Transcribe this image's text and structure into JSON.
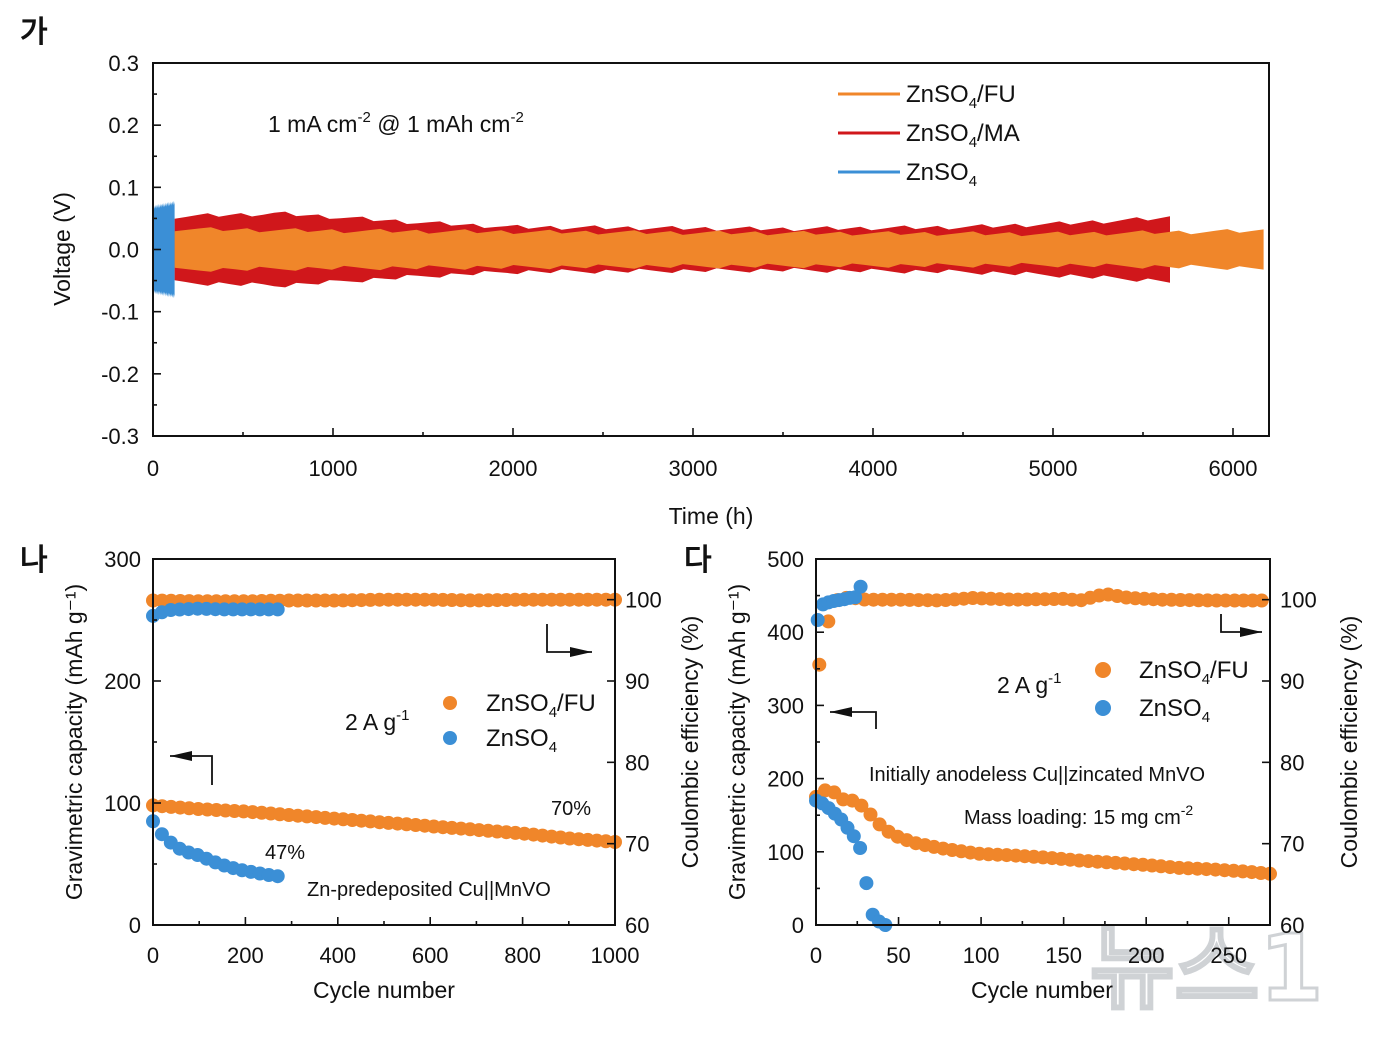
{
  "panels": {
    "a": "가",
    "b": "나",
    "c": "다"
  },
  "watermark": "뉴스1",
  "colors": {
    "orange": "#F0862A",
    "red": "#D0171B",
    "blue": "#3B8FD6"
  },
  "chart_data": [
    {
      "id": "a",
      "type": "line",
      "xlabel": "Time (h)",
      "ylabel": "Voltage (V)",
      "xlim": [
        0,
        6200
      ],
      "ylim": [
        -0.3,
        0.3
      ],
      "xticks": [
        "0",
        "1000",
        "2000",
        "3000",
        "4000",
        "5000",
        "6000"
      ],
      "yticks": [
        "0.3",
        "0.2",
        "0.1",
        "0.0",
        "-0.1",
        "-0.2",
        "-0.3"
      ],
      "annotation": {
        "base": "1 mA cm",
        "exp1": "-2",
        "mid": " @ 1 mAh cm",
        "exp2": "-2"
      },
      "legend_position": "top-right",
      "series": [
        {
          "name": "ZnSO4/FU",
          "name_base": "ZnSO",
          "name_sub": "4",
          "name_rest": "/FU",
          "color": "#F0862A",
          "x_end": 6170,
          "envelope": [
            [
              120,
              0.033
            ],
            [
              1000,
              0.03
            ],
            [
              3000,
              0.027
            ],
            [
              5000,
              0.025
            ],
            [
              6170,
              0.03
            ]
          ]
        },
        {
          "name": "ZnSO4/MA",
          "name_base": "ZnSO",
          "name_sub": "4",
          "name_rest": "/MA",
          "color": "#D0171B",
          "x_end": 5650,
          "envelope": [
            [
              120,
              0.053
            ],
            [
              700,
              0.058
            ],
            [
              1500,
              0.043
            ],
            [
              2000,
              0.036
            ],
            [
              3500,
              0.033
            ],
            [
              4500,
              0.036
            ],
            [
              5000,
              0.041
            ],
            [
              5650,
              0.051
            ]
          ]
        },
        {
          "name": "ZnSO4",
          "name_base": "ZnSO",
          "name_sub": "4",
          "name_rest": "",
          "color": "#3B8FD6",
          "x_end": 120,
          "envelope": [
            [
              0,
              0.068
            ],
            [
              120,
              0.075
            ]
          ]
        }
      ]
    },
    {
      "id": "b",
      "type": "scatter",
      "xlabel": "Cycle number",
      "ylabel": "Gravimetric capacity (mAh g⁻¹)",
      "y2label": "Coulombic efficiency (%)",
      "xlim": [
        0,
        1000
      ],
      "ylim": [
        0,
        300
      ],
      "y2lim": [
        60,
        105
      ],
      "xticks": [
        "0",
        "200",
        "400",
        "600",
        "800",
        "1000"
      ],
      "yticks": [
        "0",
        "100",
        "200",
        "300"
      ],
      "y2ticks": [
        "60",
        "70",
        "80",
        "90",
        "100"
      ],
      "rate": {
        "base": "2 A g",
        "exp": "-1"
      },
      "note": "Zn-predeposited Cu||MnVO",
      "retention_fu": "70%",
      "retention_zn": "47%",
      "series": [
        {
          "name": "ZnSO4/FU",
          "name_base": "ZnSO",
          "name_sub": "4",
          "name_rest": "/FU",
          "color": "#F0862A",
          "axis": "left",
          "x": [
            0,
            100,
            200,
            300,
            400,
            500,
            600,
            700,
            800,
            900,
            1000
          ],
          "y": [
            98,
            95,
            93,
            90,
            87,
            84,
            81,
            78,
            75,
            71,
            68
          ]
        },
        {
          "name": "ZnSO4",
          "name_base": "ZnSO",
          "name_sub": "4",
          "name_rest": "",
          "color": "#3B8FD6",
          "axis": "left",
          "x": [
            0,
            20,
            40,
            60,
            80,
            100,
            130,
            160,
            190,
            220,
            250,
            270
          ],
          "y": [
            85,
            74,
            67,
            62,
            59,
            57,
            52,
            48,
            45,
            43,
            41,
            40
          ]
        },
        {
          "name": "ZnSO4/FU CE",
          "color": "#F0862A",
          "axis": "right",
          "x": [
            0,
            100,
            200,
            300,
            400,
            500,
            600,
            700,
            800,
            900,
            1000
          ],
          "y": [
            99.9,
            99.8,
            99.8,
            99.9,
            99.9,
            100.0,
            100.0,
            99.9,
            100.0,
            100.0,
            100.0
          ]
        },
        {
          "name": "ZnSO4 CE",
          "color": "#3B8FD6",
          "axis": "right",
          "x": [
            0,
            30,
            60,
            100,
            150,
            200,
            270
          ],
          "y": [
            98.0,
            98.7,
            98.8,
            98.9,
            98.8,
            98.8,
            98.8
          ]
        }
      ]
    },
    {
      "id": "c",
      "type": "scatter",
      "xlabel": "Cycle number",
      "ylabel": "Gravimetric capacity (mAh g⁻¹)",
      "y2label": "Coulombic efficiency (%)",
      "xlim": [
        0,
        275
      ],
      "ylim": [
        0,
        500
      ],
      "y2lim": [
        60,
        105
      ],
      "xticks": [
        "0",
        "50",
        "100",
        "150",
        "200",
        "250"
      ],
      "yticks": [
        "0",
        "100",
        "200",
        "300",
        "400",
        "500"
      ],
      "y2ticks": [
        "60",
        "70",
        "80",
        "90",
        "100"
      ],
      "rate": {
        "base": "2 A g",
        "exp": "-1"
      },
      "note1": "Initially anodeless Cu||zincated MnVO",
      "note2": {
        "base": "Mass loading: 15 mg cm",
        "exp": "-2"
      },
      "series": [
        {
          "name": "ZnSO4/FU",
          "name_base": "ZnSO",
          "name_sub": "4",
          "name_rest": "/FU",
          "color": "#F0862A",
          "axis": "left",
          "x": [
            0,
            8,
            15,
            22,
            30,
            35,
            42,
            50,
            60,
            75,
            90,
            100,
            120,
            140,
            160,
            180,
            200,
            220,
            240,
            260,
            275
          ],
          "y": [
            175,
            188,
            172,
            170,
            160,
            145,
            130,
            120,
            112,
            105,
            100,
            97,
            95,
            92,
            88,
            85,
            82,
            78,
            76,
            73,
            70
          ]
        },
        {
          "name": "ZnSO4",
          "name_base": "ZnSO",
          "name_sub": "4",
          "name_rest": "",
          "color": "#3B8FD6",
          "axis": "left",
          "x": [
            0,
            5,
            10,
            15,
            20,
            25,
            28,
            31,
            34,
            38,
            42
          ],
          "y": [
            170,
            165,
            155,
            145,
            130,
            115,
            98,
            50,
            15,
            5,
            0
          ]
        },
        {
          "name": "ZnSO4/FU CE",
          "color": "#F0862A",
          "axis": "right",
          "x": [
            2,
            10,
            20,
            30,
            50,
            75,
            95,
            120,
            150,
            160,
            175,
            190,
            210,
            240,
            270
          ],
          "y": [
            92,
            99.8,
            100.3,
            100.0,
            100.0,
            99.9,
            100.2,
            100.0,
            100.1,
            99.9,
            100.7,
            100.2,
            100.0,
            99.9,
            99.9
          ]
        },
        {
          "name": "ZnSO4 CE",
          "color": "#3B8FD6",
          "axis": "right",
          "x": [
            1,
            4,
            8,
            12,
            16,
            20,
            24,
            27
          ],
          "y": [
            97.5,
            99.4,
            99.7,
            99.9,
            100.0,
            100.2,
            100.3,
            101.6
          ]
        }
      ]
    }
  ]
}
